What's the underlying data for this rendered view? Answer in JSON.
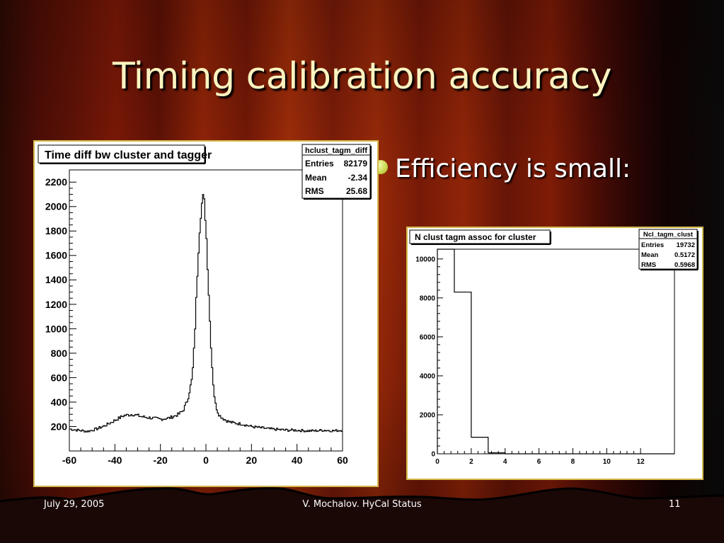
{
  "slide": {
    "title": "Timing calibration accuracy",
    "bullet": "Efficiency is small:",
    "footer_left": "July 29, 2005",
    "footer_center": "V. Mochalov. HyCal Status",
    "footer_right": "11"
  },
  "chart_data": [
    {
      "type": "histogram",
      "title": "Time diff bw cluster and tagger",
      "stats": {
        "name": "hclust_tagm_diff",
        "rows": [
          {
            "label": "Entries",
            "value": "82179"
          },
          {
            "label": "Mean",
            "value": "-2.34"
          },
          {
            "label": "RMS",
            "value": "25.68"
          }
        ]
      },
      "xlim": [
        -60,
        60
      ],
      "ylim": [
        0,
        2300
      ],
      "x_ticks": [
        "-60",
        "-40",
        "-20",
        "0",
        "20",
        "40",
        "60"
      ],
      "y_ticks": [
        "200",
        "400",
        "600",
        "800",
        "1000",
        "1200",
        "1400",
        "1600",
        "1800",
        "2000",
        "2200"
      ],
      "x": [
        -60,
        -56,
        -52,
        -48,
        -44,
        -40,
        -36,
        -32,
        -28,
        -24,
        -20,
        -16,
        -12,
        -10,
        -8,
        -6,
        -5,
        -4,
        -3,
        -2,
        -1,
        0,
        1,
        2,
        3,
        4,
        5,
        6,
        8,
        10,
        12,
        16,
        20,
        24,
        28,
        32,
        36,
        40,
        44,
        48,
        52,
        56,
        60
      ],
      "values": [
        180,
        170,
        160,
        180,
        210,
        250,
        290,
        300,
        280,
        270,
        260,
        270,
        300,
        330,
        420,
        600,
        900,
        1350,
        1750,
        2000,
        2100,
        1850,
        1400,
        950,
        600,
        400,
        330,
        290,
        260,
        240,
        230,
        220,
        200,
        190,
        180,
        175,
        170,
        170,
        165,
        165,
        170,
        165,
        170
      ]
    },
    {
      "type": "histogram",
      "title": "N clust tagm assoc for cluster",
      "stats": {
        "name": "Ncl_tagm_clust",
        "rows": [
          {
            "label": "Entries",
            "value": "19732"
          },
          {
            "label": "Mean",
            "value": "0.5172"
          },
          {
            "label": "RMS",
            "value": "0.5968"
          }
        ]
      },
      "xlim": [
        0,
        14
      ],
      "ylim": [
        0,
        10500
      ],
      "x_ticks": [
        "0",
        "2",
        "4",
        "6",
        "8",
        "10",
        "12"
      ],
      "y_ticks": [
        "0",
        "2000",
        "4000",
        "6000",
        "8000",
        "10000"
      ],
      "bins": [
        0,
        1,
        2,
        3,
        4,
        5,
        6,
        7,
        8,
        9,
        10,
        11,
        12,
        13
      ],
      "values": [
        10500,
        8300,
        850,
        50,
        0,
        0,
        0,
        0,
        0,
        0,
        0,
        0,
        0,
        0
      ]
    }
  ]
}
